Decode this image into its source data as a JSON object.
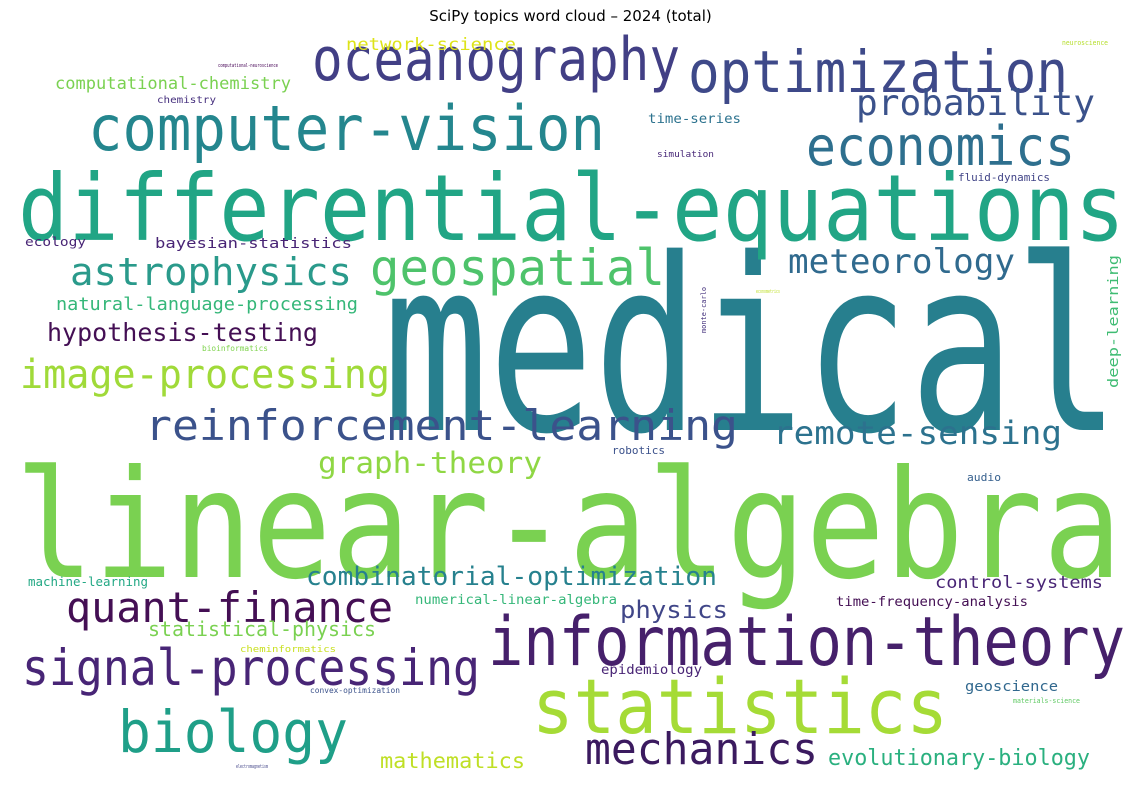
{
  "title": "SciPy topics word cloud – 2024 (total)",
  "palette": "viridis",
  "words": [
    {
      "text": "medical",
      "color": "#277f8e"
    },
    {
      "text": "linear-algebra",
      "color": "#7ad151"
    },
    {
      "text": "differential-equations",
      "color": "#21a585"
    },
    {
      "text": "information-theory",
      "color": "#46206b"
    },
    {
      "text": "statistics",
      "color": "#a5db36"
    },
    {
      "text": "computer-vision",
      "color": "#24868e"
    },
    {
      "text": "optimization",
      "color": "#3e4989"
    },
    {
      "text": "oceanography",
      "color": "#423f85"
    },
    {
      "text": "economics",
      "color": "#2e6f8e"
    },
    {
      "text": "biology",
      "color": "#1f9f88"
    },
    {
      "text": "signal-processing",
      "color": "#482576"
    },
    {
      "text": "mechanics",
      "color": "#3b1a5f"
    },
    {
      "text": "geospatial",
      "color": "#4ec36b"
    },
    {
      "text": "reinforcement-learning",
      "color": "#3b528b"
    },
    {
      "text": "quant-finance",
      "color": "#440f54"
    },
    {
      "text": "image-processing",
      "color": "#a0da39"
    },
    {
      "text": "astrophysics",
      "color": "#2a9a8b"
    },
    {
      "text": "probability",
      "color": "#3b528b"
    },
    {
      "text": "meteorology",
      "color": "#306a8e"
    },
    {
      "text": "remote-sensing",
      "color": "#2c728e"
    },
    {
      "text": "graph-theory",
      "color": "#8fd744"
    },
    {
      "text": "combinatorial-optimization",
      "color": "#26818e"
    },
    {
      "text": "hypothesis-testing",
      "color": "#440f54"
    },
    {
      "text": "evolutionary-biology",
      "color": "#2ab07f"
    },
    {
      "text": "physics",
      "color": "#404688"
    },
    {
      "text": "mathematics",
      "color": "#bfdf25"
    },
    {
      "text": "statistical-physics",
      "color": "#7ad151"
    },
    {
      "text": "control-systems",
      "color": "#482475"
    },
    {
      "text": "natural-language-processing",
      "color": "#35b779"
    },
    {
      "text": "computational-chemistry",
      "color": "#7ad151"
    },
    {
      "text": "network-science",
      "color": "#dde318"
    },
    {
      "text": "bayesian-statistics",
      "color": "#482475"
    },
    {
      "text": "deep-learning",
      "color": "#3fbc73"
    },
    {
      "text": "time-frequency-analysis",
      "color": "#440f54"
    },
    {
      "text": "numerical-linear-algebra",
      "color": "#35b779"
    },
    {
      "text": "machine-learning",
      "color": "#22a884"
    },
    {
      "text": "geoscience",
      "color": "#31688e"
    },
    {
      "text": "epidemiology",
      "color": "#482475"
    },
    {
      "text": "time-series",
      "color": "#2c728e"
    },
    {
      "text": "ecology",
      "color": "#482475"
    },
    {
      "text": "fluid-dynamics",
      "color": "#414487"
    },
    {
      "text": "audio",
      "color": "#355f8d"
    },
    {
      "text": "robotics",
      "color": "#3b518b"
    },
    {
      "text": "chemistry",
      "color": "#46307e"
    },
    {
      "text": "simulation",
      "color": "#482878"
    },
    {
      "text": "cheminformatics",
      "color": "#c8e020"
    },
    {
      "text": "bioinformatics",
      "color": "#7fd34e"
    },
    {
      "text": "convex-optimization",
      "color": "#3b528b"
    },
    {
      "text": "neuroscience",
      "color": "#b5de2b"
    },
    {
      "text": "materials-science",
      "color": "#5ec962"
    },
    {
      "text": "monte-carlo",
      "color": "#46337e"
    },
    {
      "text": "computational-neuroscience",
      "color": "#440154"
    },
    {
      "text": "electromagnetism",
      "color": "#414487"
    },
    {
      "text": "econometrics",
      "color": "#bddf26"
    }
  ]
}
